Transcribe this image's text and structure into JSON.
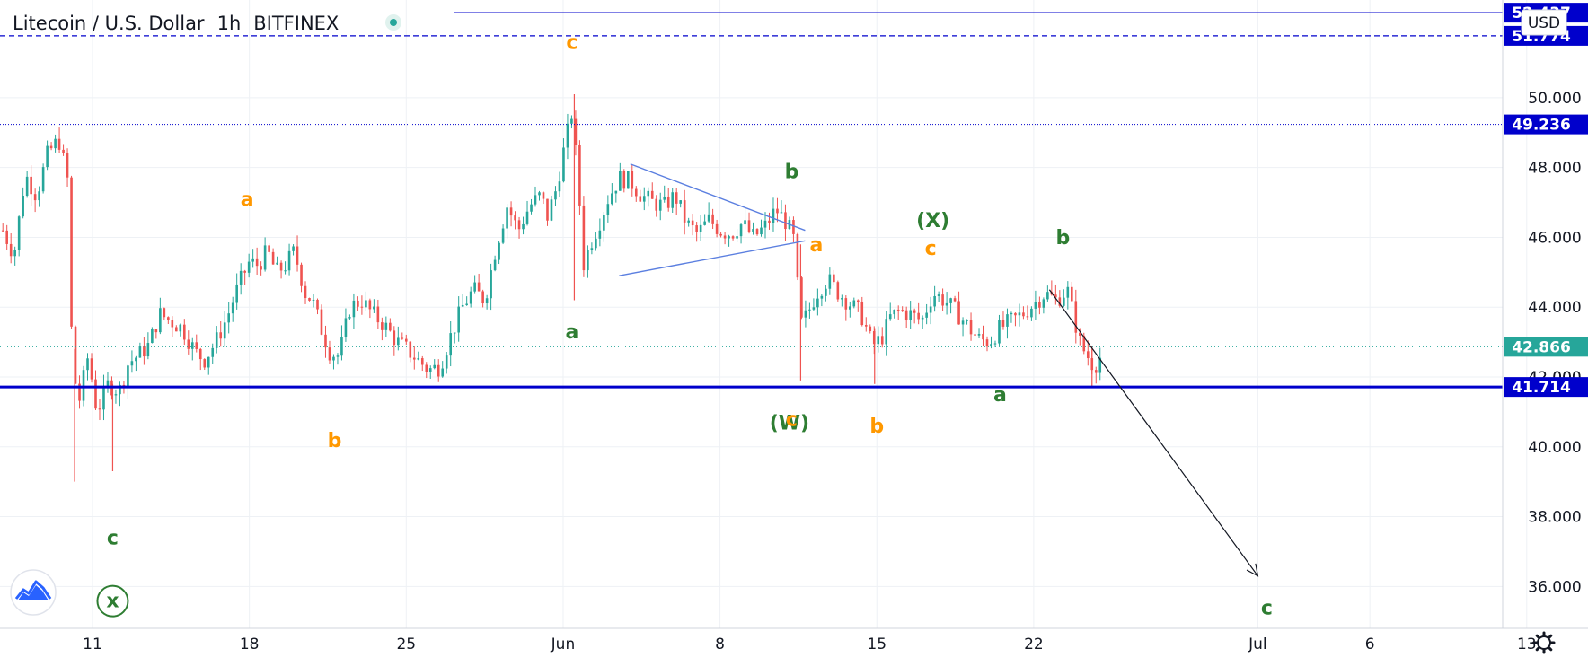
{
  "header": {
    "symbol": "Litecoin / U.S. Dollar",
    "interval": "1h",
    "exchange": "BITFINEX",
    "currency_button": "USD"
  },
  "colors": {
    "up": "#26a69a",
    "down": "#ef5350",
    "orange": "#ff9800",
    "green": "#2e7d32",
    "support": "#0000cc",
    "triangle": "#5b7fe0",
    "arrow": "#131722",
    "label_bg": "#0000cc",
    "current_bg": "#26a69a"
  },
  "chart_data": {
    "type": "candlestick",
    "symbol": "Litecoin / U.S. Dollar",
    "interval": "1h",
    "ylim": [
      34.8,
      52.8
    ],
    "x_ticks": [
      {
        "label": "11",
        "day": 11
      },
      {
        "label": "18",
        "day": 18
      },
      {
        "label": "25",
        "day": 25
      },
      {
        "label": "Jun",
        "day": 32
      },
      {
        "label": "8",
        "day": 39
      },
      {
        "label": "15",
        "day": 46
      },
      {
        "label": "22",
        "day": 53
      },
      {
        "label": "Jul",
        "day": 63
      },
      {
        "label": "6",
        "day": 68
      },
      {
        "label": "13",
        "day": 75
      }
    ],
    "y_ticks": [
      36,
      38,
      40,
      42,
      44,
      46,
      48,
      50
    ],
    "price_path": [
      [
        7.0,
        46.2
      ],
      [
        7.5,
        45.5
      ],
      [
        8.0,
        47.8
      ],
      [
        8.5,
        47.2
      ],
      [
        9.0,
        48.4
      ],
      [
        9.5,
        48.8
      ],
      [
        9.9,
        47.6
      ],
      [
        10.1,
        42.3
      ],
      [
        10.4,
        41.3
      ],
      [
        10.8,
        42.6
      ],
      [
        11.2,
        41.0
      ],
      [
        11.7,
        41.8
      ],
      [
        12.2,
        41.6
      ],
      [
        12.6,
        42.4
      ],
      [
        13.0,
        42.6
      ],
      [
        13.5,
        42.9
      ],
      [
        14.0,
        43.8
      ],
      [
        14.5,
        43.6
      ],
      [
        15.0,
        43.4
      ],
      [
        15.6,
        42.7
      ],
      [
        16.0,
        42.5
      ],
      [
        16.5,
        43.0
      ],
      [
        17.0,
        43.7
      ],
      [
        17.5,
        44.6
      ],
      [
        18.0,
        45.3
      ],
      [
        18.4,
        45.2
      ],
      [
        18.8,
        45.6
      ],
      [
        19.2,
        45.0
      ],
      [
        19.6,
        45.2
      ],
      [
        20.0,
        45.6
      ],
      [
        20.5,
        44.4
      ],
      [
        20.8,
        44.2
      ],
      [
        21.2,
        43.4
      ],
      [
        21.6,
        42.7
      ],
      [
        22.0,
        42.6
      ],
      [
        22.5,
        44.0
      ],
      [
        23.0,
        44.2
      ],
      [
        23.5,
        43.8
      ],
      [
        24.0,
        43.5
      ],
      [
        24.6,
        43.0
      ],
      [
        25.0,
        42.8
      ],
      [
        25.5,
        42.5
      ],
      [
        26.0,
        42.2
      ],
      [
        26.5,
        42.3
      ],
      [
        27.0,
        43.2
      ],
      [
        27.5,
        44.0
      ],
      [
        28.0,
        44.5
      ],
      [
        28.5,
        44.2
      ],
      [
        29.0,
        45.7
      ],
      [
        29.5,
        46.9
      ],
      [
        30.0,
        46.2
      ],
      [
        30.5,
        46.9
      ],
      [
        31.0,
        47.2
      ],
      [
        31.3,
        46.6
      ],
      [
        31.7,
        47.4
      ],
      [
        32.0,
        48.4
      ],
      [
        32.4,
        49.6
      ],
      [
        32.7,
        47.4
      ],
      [
        32.9,
        45.2
      ],
      [
        33.2,
        45.8
      ],
      [
        33.6,
        46.4
      ],
      [
        34.0,
        47.1
      ],
      [
        34.5,
        47.7
      ],
      [
        35.0,
        47.6
      ],
      [
        35.5,
        47.2
      ],
      [
        36.0,
        47.0
      ],
      [
        36.5,
        46.9
      ],
      [
        37.0,
        47.2
      ],
      [
        37.5,
        46.4
      ],
      [
        38.0,
        46.1
      ],
      [
        38.5,
        46.5
      ],
      [
        39.0,
        46.2
      ],
      [
        39.5,
        46.1
      ],
      [
        40.0,
        46.4
      ],
      [
        40.5,
        46.0
      ],
      [
        41.0,
        46.3
      ],
      [
        41.5,
        46.8
      ],
      [
        42.0,
        46.4
      ],
      [
        42.3,
        45.9
      ],
      [
        42.6,
        43.5
      ],
      [
        42.9,
        43.8
      ],
      [
        43.3,
        44.4
      ],
      [
        43.8,
        44.8
      ],
      [
        44.3,
        44.4
      ],
      [
        44.8,
        44.1
      ],
      [
        45.3,
        43.8
      ],
      [
        45.8,
        42.9
      ],
      [
        46.2,
        43.1
      ],
      [
        46.6,
        43.7
      ],
      [
        47.0,
        43.9
      ],
      [
        47.5,
        43.8
      ],
      [
        48.0,
        43.6
      ],
      [
        48.5,
        44.4
      ],
      [
        49.0,
        44.2
      ],
      [
        49.5,
        43.9
      ],
      [
        50.0,
        43.5
      ],
      [
        50.5,
        43.1
      ],
      [
        51.0,
        43.0
      ],
      [
        51.5,
        43.4
      ],
      [
        52.0,
        43.6
      ],
      [
        52.5,
        43.8
      ],
      [
        53.0,
        44.1
      ],
      [
        53.5,
        44.4
      ],
      [
        54.0,
        44.2
      ],
      [
        54.5,
        44.5
      ],
      [
        54.8,
        43.7
      ],
      [
        55.1,
        42.9
      ],
      [
        55.4,
        42.6
      ],
      [
        55.7,
        42.3
      ],
      [
        56.0,
        42.6
      ]
    ],
    "horizontal_lines": [
      {
        "price": 41.714,
        "label": "41.714",
        "style": "solid-thick"
      },
      {
        "price": 49.236,
        "label": "49.236",
        "style": "dotted"
      },
      {
        "price": 51.774,
        "label": "51.774",
        "style": "dashed"
      },
      {
        "price": 52.437,
        "label": "52.437",
        "style": "solid"
      }
    ],
    "current_price": {
      "price": 42.866,
      "label": "42.866"
    },
    "partial_tick_label": "42.000",
    "triangle": {
      "upper": [
        [
          35.0,
          48.1
        ],
        [
          42.8,
          46.2
        ]
      ],
      "lower": [
        [
          34.5,
          44.9
        ],
        [
          42.8,
          45.9
        ]
      ]
    },
    "forecast_arrow": [
      [
        53.7,
        44.5
      ],
      [
        63.0,
        36.3
      ]
    ],
    "wave_labels": [
      {
        "text": "c",
        "day": 32.4,
        "price": 51.4,
        "color": "orange"
      },
      {
        "text": "a",
        "day": 17.9,
        "price": 46.9,
        "color": "orange"
      },
      {
        "text": "b",
        "day": 21.8,
        "price": 40.0,
        "color": "orange"
      },
      {
        "text": "c",
        "day": 11.9,
        "price": 37.2,
        "color": "green"
      },
      {
        "text": "x",
        "day": 11.9,
        "price": 35.4,
        "color": "green",
        "circled": true
      },
      {
        "text": "a",
        "day": 32.4,
        "price": 43.1,
        "color": "green"
      },
      {
        "text": "b",
        "day": 42.2,
        "price": 47.7,
        "color": "green"
      },
      {
        "text": "a",
        "day": 43.3,
        "price": 45.6,
        "color": "orange"
      },
      {
        "text": "(W)",
        "day": 42.1,
        "price": 40.5,
        "color": "green"
      },
      {
        "text": "c",
        "day": 42.2,
        "price": 40.6,
        "color": "orange"
      },
      {
        "text": "b",
        "day": 46.0,
        "price": 40.4,
        "color": "orange"
      },
      {
        "text": "(X)",
        "day": 48.5,
        "price": 46.3,
        "color": "green"
      },
      {
        "text": "c",
        "day": 48.4,
        "price": 45.5,
        "color": "orange"
      },
      {
        "text": "b",
        "day": 54.3,
        "price": 45.8,
        "color": "green"
      },
      {
        "text": "a",
        "day": 51.5,
        "price": 41.3,
        "color": "green"
      },
      {
        "text": "c",
        "day": 63.4,
        "price": 35.2,
        "color": "green"
      }
    ]
  }
}
